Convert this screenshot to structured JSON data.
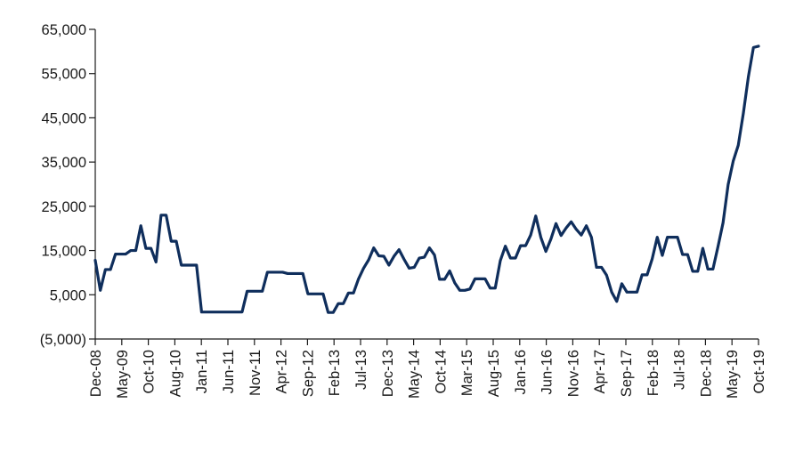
{
  "chart_data": {
    "type": "line",
    "title": "",
    "xlabel": "",
    "ylabel": "",
    "ylim": [
      -5000,
      65000
    ],
    "yticks": [
      -5000,
      5000,
      15000,
      25000,
      35000,
      45000,
      55000,
      65000
    ],
    "ytick_labels": [
      "(5,000)",
      "5,000",
      "15,000",
      "25,000",
      "35,000",
      "45,000",
      "55,000",
      "65,000"
    ],
    "x_start": "Dec-08",
    "x_end": "Oct-19",
    "xtick_labels": [
      "Dec-08",
      "May-09",
      "Oct-10",
      "Aug-10",
      "Jan-11",
      "Jun-11",
      "Nov-11",
      "Apr-12",
      "Sep-12",
      "Feb-13",
      "Jul-13",
      "Dec-13",
      "May-14",
      "Oct-14",
      "Mar-15",
      "Aug-15",
      "Jan-16",
      "Jun-16",
      "Nov-16",
      "Apr-17",
      "Sep-17",
      "Feb-18",
      "Jul-18",
      "Dec-18",
      "May-19",
      "Oct-19"
    ],
    "grid": false,
    "legend": "none",
    "series": [
      {
        "color": "#0f2e5c",
        "values": [
          12800,
          6000,
          10700,
          10700,
          14200,
          14200,
          14200,
          15000,
          15000,
          20600,
          15500,
          15500,
          12400,
          23000,
          23000,
          17100,
          17100,
          11700,
          11700,
          11700,
          11700,
          1100,
          1100,
          1100,
          1100,
          1100,
          1100,
          1100,
          1100,
          1100,
          5800,
          5800,
          5800,
          5800,
          10100,
          10100,
          10100,
          10100,
          9800,
          9800,
          9800,
          9800,
          5200,
          5200,
          5200,
          5200,
          1000,
          1000,
          3000,
          3000,
          5400,
          5400,
          8600,
          11000,
          12900,
          15600,
          13800,
          13700,
          11700,
          13700,
          15200,
          13000,
          11000,
          11200,
          13300,
          13500,
          15600,
          14000,
          8500,
          8500,
          10400,
          7700,
          6000,
          6000,
          6300,
          8600,
          8600,
          8600,
          6500,
          6500,
          12700,
          16000,
          13300,
          13300,
          16100,
          16100,
          18500,
          22800,
          18000,
          14800,
          17600,
          21100,
          18400,
          20100,
          21500,
          19800,
          18500,
          20600,
          18000,
          11200,
          11200,
          9400,
          5600,
          3500,
          7500,
          5600,
          5600,
          5600,
          9500,
          9500,
          13100,
          18000,
          13900,
          18000,
          18000,
          18000,
          14100,
          14100,
          10300,
          10300,
          15500,
          10800,
          10800,
          15900,
          21300,
          29900,
          35200,
          38800,
          46000,
          54300,
          60900,
          61200
        ]
      }
    ]
  }
}
